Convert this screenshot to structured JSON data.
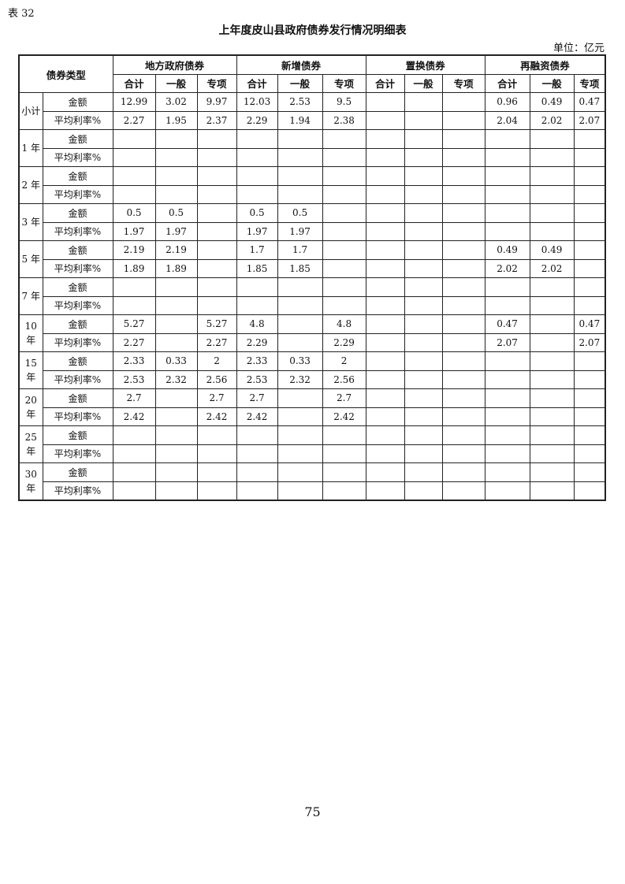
{
  "table_tag": "表 32",
  "title": "上年度皮山县政府债券发行情况明细表",
  "unit": "单位：亿元",
  "header": {
    "type_label": "债券类型",
    "groups": [
      "地方政府债券",
      "新增债券",
      "置换债券",
      "再融资债券"
    ],
    "subcols": [
      "合计",
      "一般",
      "专项"
    ]
  },
  "row_groups": [
    {
      "label": "小计",
      "rows": [
        {
          "label": "金额",
          "values": [
            "12.99",
            "3.02",
            "9.97",
            "12.03",
            "2.53",
            "9.5",
            "",
            "",
            "",
            "0.96",
            "0.49",
            "0.47"
          ]
        },
        {
          "label": "平均利率%",
          "values": [
            "2.27",
            "1.95",
            "2.37",
            "2.29",
            "1.94",
            "2.38",
            "",
            "",
            "",
            "2.04",
            "2.02",
            "2.07"
          ]
        }
      ]
    },
    {
      "label": "1 年",
      "rows": [
        {
          "label": "金额",
          "values": [
            "",
            "",
            "",
            "",
            "",
            "",
            "",
            "",
            "",
            "",
            "",
            ""
          ]
        },
        {
          "label": "平均利率%",
          "values": [
            "",
            "",
            "",
            "",
            "",
            "",
            "",
            "",
            "",
            "",
            "",
            ""
          ]
        }
      ]
    },
    {
      "label": "2 年",
      "rows": [
        {
          "label": "金额",
          "values": [
            "",
            "",
            "",
            "",
            "",
            "",
            "",
            "",
            "",
            "",
            "",
            ""
          ]
        },
        {
          "label": "平均利率%",
          "values": [
            "",
            "",
            "",
            "",
            "",
            "",
            "",
            "",
            "",
            "",
            "",
            ""
          ]
        }
      ]
    },
    {
      "label": "3 年",
      "rows": [
        {
          "label": "金额",
          "values": [
            "0.5",
            "0.5",
            "",
            "0.5",
            "0.5",
            "",
            "",
            "",
            "",
            "",
            "",
            ""
          ]
        },
        {
          "label": "平均利率%",
          "values": [
            "1.97",
            "1.97",
            "",
            "1.97",
            "1.97",
            "",
            "",
            "",
            "",
            "",
            "",
            ""
          ]
        }
      ]
    },
    {
      "label": "5 年",
      "rows": [
        {
          "label": "金额",
          "values": [
            "2.19",
            "2.19",
            "",
            "1.7",
            "1.7",
            "",
            "",
            "",
            "",
            "0.49",
            "0.49",
            ""
          ]
        },
        {
          "label": "平均利率%",
          "values": [
            "1.89",
            "1.89",
            "",
            "1.85",
            "1.85",
            "",
            "",
            "",
            "",
            "2.02",
            "2.02",
            ""
          ]
        }
      ]
    },
    {
      "label": "7 年",
      "rows": [
        {
          "label": "金额",
          "values": [
            "",
            "",
            "",
            "",
            "",
            "",
            "",
            "",
            "",
            "",
            "",
            ""
          ]
        },
        {
          "label": "平均利率%",
          "values": [
            "",
            "",
            "",
            "",
            "",
            "",
            "",
            "",
            "",
            "",
            "",
            ""
          ]
        }
      ]
    },
    {
      "label": "10 年",
      "rows": [
        {
          "label": "金额",
          "values": [
            "5.27",
            "",
            "5.27",
            "4.8",
            "",
            "4.8",
            "",
            "",
            "",
            "0.47",
            "",
            "0.47"
          ]
        },
        {
          "label": "平均利率%",
          "values": [
            "2.27",
            "",
            "2.27",
            "2.29",
            "",
            "2.29",
            "",
            "",
            "",
            "2.07",
            "",
            "2.07"
          ]
        }
      ]
    },
    {
      "label": "15 年",
      "rows": [
        {
          "label": "金额",
          "values": [
            "2.33",
            "0.33",
            "2",
            "2.33",
            "0.33",
            "2",
            "",
            "",
            "",
            "",
            "",
            ""
          ]
        },
        {
          "label": "平均利率%",
          "values": [
            "2.53",
            "2.32",
            "2.56",
            "2.53",
            "2.32",
            "2.56",
            "",
            "",
            "",
            "",
            "",
            ""
          ]
        }
      ]
    },
    {
      "label": "20 年",
      "rows": [
        {
          "label": "金额",
          "values": [
            "2.7",
            "",
            "2.7",
            "2.7",
            "",
            "2.7",
            "",
            "",
            "",
            "",
            "",
            ""
          ]
        },
        {
          "label": "平均利率%",
          "values": [
            "2.42",
            "",
            "2.42",
            "2.42",
            "",
            "2.42",
            "",
            "",
            "",
            "",
            "",
            ""
          ]
        }
      ]
    },
    {
      "label": "25 年",
      "rows": [
        {
          "label": "金额",
          "values": [
            "",
            "",
            "",
            "",
            "",
            "",
            "",
            "",
            "",
            "",
            "",
            ""
          ]
        },
        {
          "label": "平均利率%",
          "values": [
            "",
            "",
            "",
            "",
            "",
            "",
            "",
            "",
            "",
            "",
            "",
            ""
          ]
        }
      ]
    },
    {
      "label": "30 年",
      "rows": [
        {
          "label": "金额",
          "values": [
            "",
            "",
            "",
            "",
            "",
            "",
            "",
            "",
            "",
            "",
            "",
            ""
          ]
        },
        {
          "label": "平均利率%",
          "values": [
            "",
            "",
            "",
            "",
            "",
            "",
            "",
            "",
            "",
            "",
            "",
            ""
          ]
        }
      ]
    }
  ],
  "page_number": "75"
}
